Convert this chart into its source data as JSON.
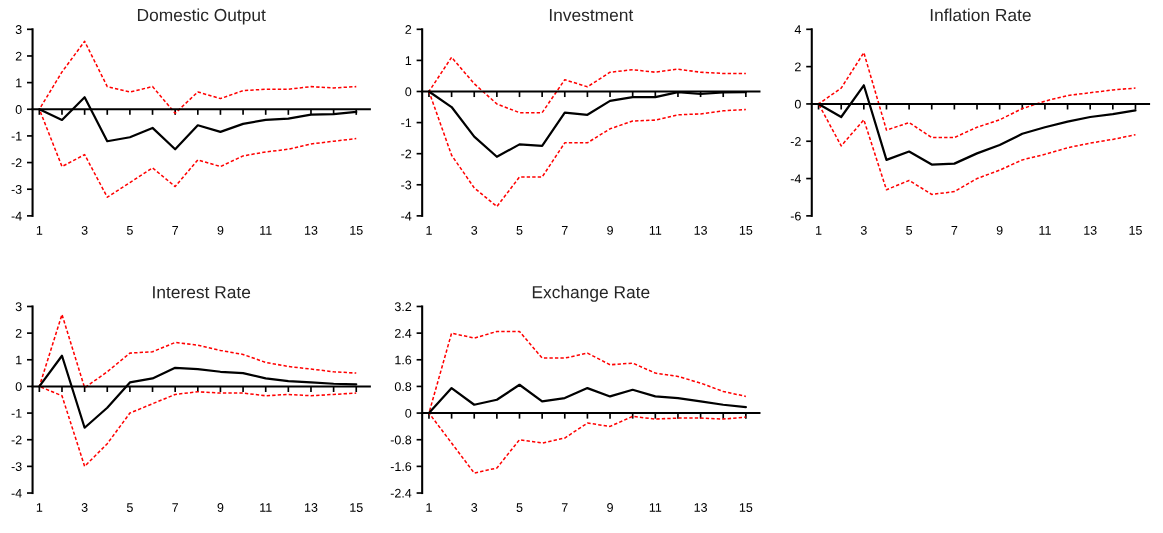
{
  "chart_data": [
    {
      "type": "line",
      "title": "Domestic Output",
      "categories": [
        "1",
        null,
        "3",
        null,
        "5",
        null,
        "7",
        null,
        "9",
        null,
        "11",
        null,
        "13",
        null,
        "15"
      ],
      "ylim": [
        -4,
        3
      ],
      "yticks": [
        -4,
        -3,
        -2,
        -1,
        0,
        1,
        2,
        3
      ],
      "series": [
        {
          "color": "#ff0000",
          "line_style": "dashed",
          "values": [
            0,
            1.4,
            2.55,
            0.85,
            0.65,
            0.85,
            -0.15,
            0.65,
            0.4,
            0.7,
            0.75,
            0.75,
            0.85,
            0.8,
            0.85
          ]
        },
        {
          "color": "#ff0000",
          "line_style": "dashed",
          "values": [
            0,
            -2.15,
            -1.7,
            -3.3,
            -2.75,
            -2.2,
            -2.9,
            -1.9,
            -2.15,
            -1.75,
            -1.6,
            -1.5,
            -1.3,
            -1.2,
            -1.1
          ]
        },
        {
          "color": "#000000",
          "line_style": "solid",
          "values": [
            0,
            -0.4,
            0.45,
            -1.2,
            -1.05,
            -0.7,
            -1.5,
            -0.6,
            -0.85,
            -0.55,
            -0.4,
            -0.35,
            -0.2,
            -0.18,
            -0.1
          ]
        }
      ]
    },
    {
      "type": "line",
      "title": "Investment",
      "categories": [
        "1",
        null,
        "3",
        null,
        "5",
        null,
        "7",
        null,
        "9",
        null,
        "11",
        null,
        "13",
        null,
        "15"
      ],
      "ylim": [
        -4,
        2
      ],
      "yticks": [
        -4,
        -3,
        -2,
        -1,
        0,
        1,
        2
      ],
      "series": [
        {
          "color": "#ff0000",
          "line_style": "dashed",
          "values": [
            0,
            1.1,
            0.25,
            -0.4,
            -0.68,
            -0.68,
            0.38,
            0.15,
            0.62,
            0.7,
            0.62,
            0.72,
            0.62,
            0.58,
            0.58
          ]
        },
        {
          "color": "#ff0000",
          "line_style": "dashed",
          "values": [
            0,
            -2.05,
            -3.1,
            -3.7,
            -2.75,
            -2.75,
            -1.65,
            -1.65,
            -1.2,
            -0.95,
            -0.92,
            -0.75,
            -0.72,
            -0.62,
            -0.58
          ]
        },
        {
          "color": "#000000",
          "line_style": "solid",
          "values": [
            0,
            -0.5,
            -1.45,
            -2.1,
            -1.7,
            -1.75,
            -0.68,
            -0.75,
            -0.3,
            -0.18,
            -0.18,
            -0.02,
            -0.08,
            -0.03,
            -0.02
          ]
        }
      ]
    },
    {
      "type": "line",
      "title": "Inflation Rate",
      "categories": [
        "1",
        null,
        "3",
        null,
        "5",
        null,
        "7",
        null,
        "9",
        null,
        "11",
        null,
        "13",
        null,
        "15"
      ],
      "ylim": [
        -6,
        4
      ],
      "yticks": [
        -6,
        -4,
        -2,
        0,
        2,
        4
      ],
      "series": [
        {
          "color": "#ff0000",
          "line_style": "dashed",
          "values": [
            0,
            0.85,
            2.75,
            -1.4,
            -1.0,
            -1.8,
            -1.8,
            -1.25,
            -0.85,
            -0.25,
            0.15,
            0.45,
            0.6,
            0.75,
            0.85
          ]
        },
        {
          "color": "#ff0000",
          "line_style": "dashed",
          "values": [
            0,
            -2.25,
            -0.85,
            -4.6,
            -4.1,
            -4.85,
            -4.7,
            -4.0,
            -3.55,
            -3.0,
            -2.7,
            -2.35,
            -2.1,
            -1.9,
            -1.65
          ]
        },
        {
          "color": "#000000",
          "line_style": "solid",
          "values": [
            0,
            -0.7,
            1.0,
            -3.0,
            -2.55,
            -3.25,
            -3.2,
            -2.65,
            -2.2,
            -1.6,
            -1.25,
            -0.95,
            -0.7,
            -0.55,
            -0.35
          ]
        }
      ]
    },
    {
      "type": "line",
      "title": "Interest Rate",
      "categories": [
        "1",
        null,
        "3",
        null,
        "5",
        null,
        "7",
        null,
        "9",
        null,
        "11",
        null,
        "13",
        null,
        "15"
      ],
      "ylim": [
        -4,
        3
      ],
      "yticks": [
        -4,
        -3,
        -2,
        -1,
        0,
        1,
        2,
        3
      ],
      "series": [
        {
          "color": "#ff0000",
          "line_style": "dashed",
          "values": [
            0,
            2.7,
            -0.05,
            0.55,
            1.25,
            1.3,
            1.65,
            1.55,
            1.35,
            1.2,
            0.9,
            0.75,
            0.65,
            0.55,
            0.5
          ]
        },
        {
          "color": "#ff0000",
          "line_style": "dashed",
          "values": [
            0,
            -0.35,
            -3.0,
            -2.15,
            -1.0,
            -0.65,
            -0.3,
            -0.2,
            -0.25,
            -0.25,
            -0.35,
            -0.3,
            -0.35,
            -0.3,
            -0.25
          ]
        },
        {
          "color": "#000000",
          "line_style": "solid",
          "values": [
            0,
            1.15,
            -1.55,
            -0.8,
            0.15,
            0.3,
            0.7,
            0.65,
            0.55,
            0.5,
            0.3,
            0.2,
            0.15,
            0.1,
            0.08
          ]
        }
      ]
    },
    {
      "type": "line",
      "title": "Exchange Rate",
      "categories": [
        "1",
        null,
        "3",
        null,
        "5",
        null,
        "7",
        null,
        "9",
        null,
        "11",
        null,
        "13",
        null,
        "15"
      ],
      "ylim": [
        -2.4,
        3.2
      ],
      "yticks": [
        -2.4,
        -1.6,
        -0.8,
        0,
        0.8,
        1.6,
        2.4,
        3.2
      ],
      "series": [
        {
          "color": "#ff0000",
          "line_style": "dashed",
          "values": [
            0,
            2.4,
            2.25,
            2.45,
            2.45,
            1.65,
            1.65,
            1.8,
            1.45,
            1.5,
            1.2,
            1.1,
            0.9,
            0.65,
            0.5
          ]
        },
        {
          "color": "#ff0000",
          "line_style": "dashed",
          "values": [
            0,
            -0.9,
            -1.8,
            -1.65,
            -0.8,
            -0.9,
            -0.75,
            -0.3,
            -0.4,
            -0.1,
            -0.18,
            -0.15,
            -0.15,
            -0.18,
            -0.12
          ]
        },
        {
          "color": "#000000",
          "line_style": "solid",
          "values": [
            0,
            0.75,
            0.25,
            0.4,
            0.85,
            0.35,
            0.45,
            0.75,
            0.5,
            0.7,
            0.5,
            0.45,
            0.35,
            0.25,
            0.18
          ]
        }
      ]
    }
  ]
}
